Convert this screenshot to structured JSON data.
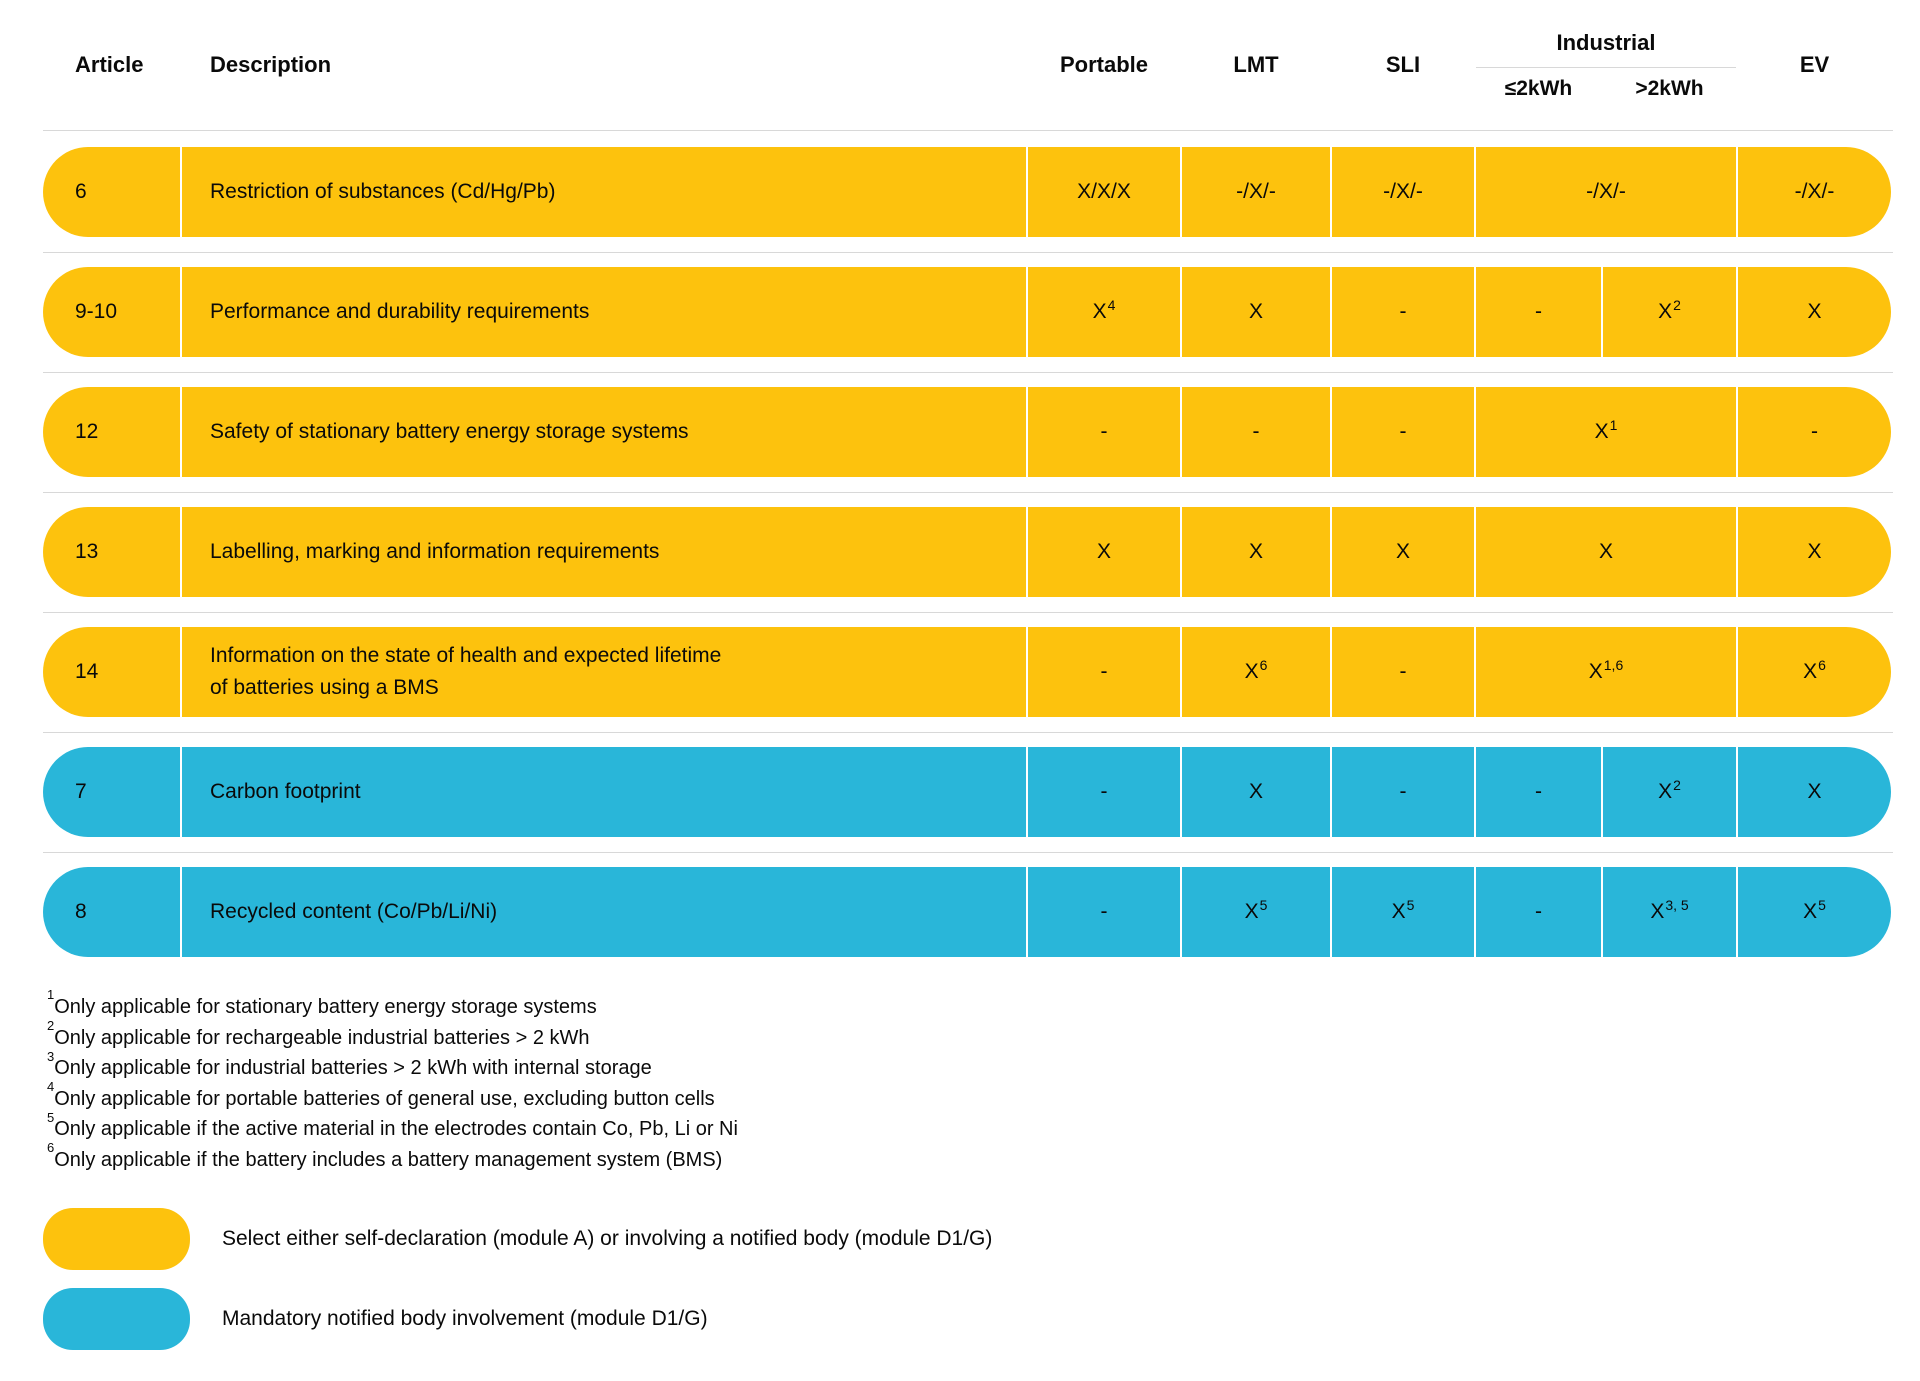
{
  "colors": {
    "yellow": "#FDC20D",
    "blue": "#29B6D9",
    "divider": "#D8D8D8",
    "text": "#0A0A0A"
  },
  "table": {
    "headers": {
      "article": "Article",
      "description": "Description",
      "portable": "Portable",
      "lmt": "LMT",
      "sli": "SLI",
      "industrial": "Industrial",
      "industrial_sub": [
        "≤2kWh",
        ">2kWh"
      ],
      "ev": "EV"
    },
    "rows": [
      {
        "article": "6",
        "description": "Restriction of substances (Cd/Hg/Pb)",
        "color": "yellow",
        "cells": [
          {
            "v": "X/X/X"
          },
          {
            "v": "-/X/-"
          },
          {
            "v": "-/X/-"
          },
          {
            "v": "-/X/-",
            "span": 2
          },
          {
            "v": "-/X/-"
          }
        ]
      },
      {
        "article": "9-10",
        "description": "Performance and durability requirements",
        "color": "yellow",
        "cells": [
          {
            "v": "X",
            "sup": "4"
          },
          {
            "v": "X"
          },
          {
            "v": "-"
          },
          {
            "v": "-"
          },
          {
            "v": "X",
            "sup": "2"
          },
          {
            "v": "X"
          }
        ]
      },
      {
        "article": "12",
        "description": "Safety of stationary battery energy storage systems",
        "color": "yellow",
        "cells": [
          {
            "v": "-"
          },
          {
            "v": "-"
          },
          {
            "v": "-"
          },
          {
            "v": "X",
            "sup": "1",
            "span": 2
          },
          {
            "v": "-"
          }
        ]
      },
      {
        "article": "13",
        "description": "Labelling, marking and information requirements",
        "color": "yellow",
        "cells": [
          {
            "v": "X"
          },
          {
            "v": "X"
          },
          {
            "v": "X"
          },
          {
            "v": "X",
            "span": 2
          },
          {
            "v": "X"
          }
        ]
      },
      {
        "article": "14",
        "description": "Information on the state of health and expected lifetime\nof batteries using a BMS",
        "color": "yellow",
        "cells": [
          {
            "v": "-"
          },
          {
            "v": "X",
            "sup": "6"
          },
          {
            "v": "-"
          },
          {
            "v": "X",
            "sup": "1,6",
            "span": 2
          },
          {
            "v": "X",
            "sup": "6"
          }
        ]
      },
      {
        "article": "7",
        "description": "Carbon footprint",
        "color": "blue",
        "cells": [
          {
            "v": "-"
          },
          {
            "v": "X"
          },
          {
            "v": "-"
          },
          {
            "v": "-"
          },
          {
            "v": "X",
            "sup": "2"
          },
          {
            "v": "X"
          }
        ]
      },
      {
        "article": "8",
        "description": "Recycled content (Co/Pb/Li/Ni)",
        "color": "blue",
        "cells": [
          {
            "v": "-"
          },
          {
            "v": "X",
            "sup": "5"
          },
          {
            "v": "X",
            "sup": "5"
          },
          {
            "v": "-"
          },
          {
            "v": "X",
            "sup": "3, 5"
          },
          {
            "v": "X",
            "sup": "5"
          }
        ]
      }
    ]
  },
  "footnotes": [
    {
      "sup": "1",
      "text": "Only applicable for stationary battery energy storage systems"
    },
    {
      "sup": "2",
      "text": "Only applicable for rechargeable industrial batteries > 2 kWh"
    },
    {
      "sup": "3",
      "text": "Only applicable for industrial batteries > 2 kWh with internal storage"
    },
    {
      "sup": "4",
      "text": "Only applicable for portable batteries of general use, excluding button cells"
    },
    {
      "sup": "5",
      "text": "Only applicable if the active material in the electrodes contain Co, Pb, Li or Ni"
    },
    {
      "sup": "6",
      "text": "Only applicable if the battery includes a battery management system (BMS)"
    }
  ],
  "legend": [
    {
      "color_key": "yellow",
      "label": "Select either self-declaration (module A) or involving a notified body (module D1/G)"
    },
    {
      "color_key": "blue",
      "label": "Mandatory notified body involvement (module D1/G)"
    }
  ]
}
